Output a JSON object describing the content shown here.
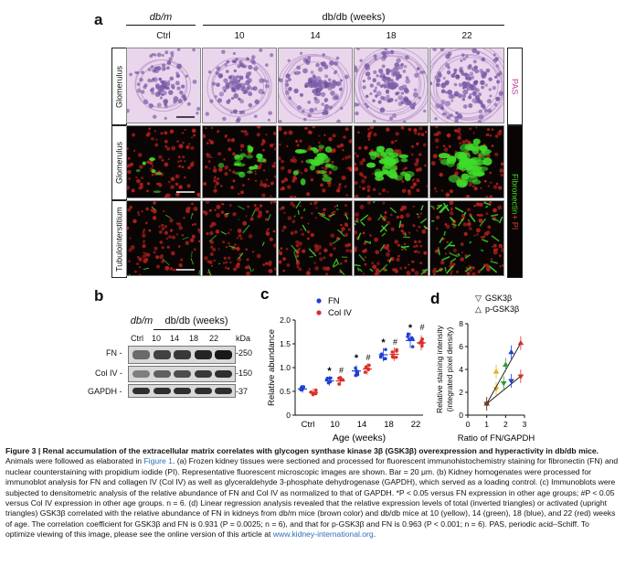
{
  "panel_a": {
    "letter": "a",
    "group_dbm": "db/m",
    "group_dbdb": "db/db (weeks)",
    "columns": [
      "Ctrl",
      "10",
      "14",
      "18",
      "22"
    ],
    "rows": [
      {
        "label": "Glomerulus",
        "stain": "PAS"
      },
      {
        "label": "Glomerulus",
        "stain": "Fibronectin + PI"
      },
      {
        "label": "Tubulointerstitium",
        "stain": ""
      }
    ],
    "stain_fibronectin": "Fibronectin",
    "stain_pi": " + PI",
    "colors": {
      "pas_bg": "#e9d6ec",
      "pas_cell": "#7e5ea9",
      "fluor_bg": "#0a0505",
      "fn_green": "#3fdc2a",
      "pi_red": "#b3201c"
    }
  },
  "panel_b": {
    "letter": "b",
    "group_dbm": "db/m",
    "group_dbdb": "db/db (weeks)",
    "lanes": [
      "Ctrl",
      "10",
      "14",
      "18",
      "22"
    ],
    "kda": "kDa",
    "bands": [
      {
        "name": "FN -",
        "kda": "250"
      },
      {
        "name": "Col IV -",
        "kda": "150"
      },
      {
        "name": "GAPDH -",
        "kda": "37"
      }
    ]
  },
  "chart_data": [
    {
      "panel": "c",
      "type": "scatter",
      "ylabel": "Relative abundance",
      "xlabel": "Age (weeks)",
      "categories": [
        "Ctrl",
        "10",
        "14",
        "18",
        "22"
      ],
      "ylim": [
        0,
        2.0
      ],
      "yticks": [
        "0",
        "0.5",
        "1.0",
        "1.5",
        "2.0"
      ],
      "series": [
        {
          "name": "FN",
          "color": "#1f3fd6",
          "means": [
            0.55,
            0.72,
            0.93,
            1.27,
            1.57
          ]
        },
        {
          "name": "Col IV",
          "color": "#d9302a",
          "means": [
            0.48,
            0.72,
            0.97,
            1.28,
            1.52
          ]
        }
      ],
      "annotations": [
        "*",
        "#",
        "*",
        "#",
        "*",
        "#",
        "*",
        "#"
      ]
    },
    {
      "panel": "d",
      "type": "scatter",
      "ylabel": "Relative staining intensity (integrated pixel density)",
      "xlabel": "Ratio of FN/GAPDH",
      "xticks": [
        "0",
        "1",
        "2",
        "3"
      ],
      "yticks": [
        "0",
        "2",
        "4",
        "6",
        "8"
      ],
      "xlim": [
        0,
        3
      ],
      "ylim": [
        0,
        8
      ],
      "legend": [
        {
          "symbol": "▽",
          "name": "GSK3β"
        },
        {
          "symbol": "△",
          "name": "p-GSK3β"
        }
      ],
      "series": [
        {
          "name": "GSK3β",
          "points": [
            {
              "x": 1.0,
              "y": 1.0
            },
            {
              "x": 1.5,
              "y": 2.3
            },
            {
              "x": 1.9,
              "y": 2.8
            },
            {
              "x": 2.3,
              "y": 3.0
            },
            {
              "x": 2.8,
              "y": 3.4
            }
          ]
        },
        {
          "name": "p-GSK3β",
          "points": [
            {
              "x": 1.0,
              "y": 1.0
            },
            {
              "x": 1.5,
              "y": 3.8
            },
            {
              "x": 2.0,
              "y": 4.4
            },
            {
              "x": 2.3,
              "y": 5.5
            },
            {
              "x": 2.8,
              "y": 6.3
            }
          ]
        }
      ]
    }
  ],
  "caption": {
    "title": "Figure 3 | Renal accumulation of the extracellular matrix correlates with glycogen synthase kinase 3β (GSK3β) overexpression and hyperactivity in db/db mice.",
    "body_1": " Animals were followed as elaborated in ",
    "link": "Figure 1",
    "body_2": ". (a) Frozen kidney tissues were sectioned and processed for fluorescent immunohistochemistry staining for fibronectin (FN) and nuclear counterstaining with propidium iodide (PI). Representative fluorescent microscopic images are shown. Bar = 20 μm. (b) Kidney homogenates were processed for immunoblot analysis for FN and collagen IV (Col IV) as well as glyceraldehyde 3-phosphate dehydrogenase (GAPDH), which served as a loading control. (c) Immunoblots were subjected to densitometric analysis of the relative abundance of FN and Col IV as normalized to that of GAPDH. *P < 0.05 versus FN expression in other age groups; #P < 0.05 versus Col IV expression in other age groups. n = 6. (d) Linear regression analysis revealed that the relative expression levels of total (inverted triangles) or activated (upright triangles) GSK3β correlated with the relative abundance of FN in kidneys from db/m mice (brown color) and db/db mice at 10 (yellow), 14 (green), 18 (blue), and 22 (red) weeks of age. The correlation coefficient for GSK3β and FN is 0.931 (P = 0.0025; n = 6), and that for p-GSK3β and FN is 0.963 (P < 0.001; n = 6). PAS, periodic acid–Schiff. To optimize viewing of this image, please see the online version of this article at ",
    "url": "www.kidney-international.org",
    "end": "."
  }
}
